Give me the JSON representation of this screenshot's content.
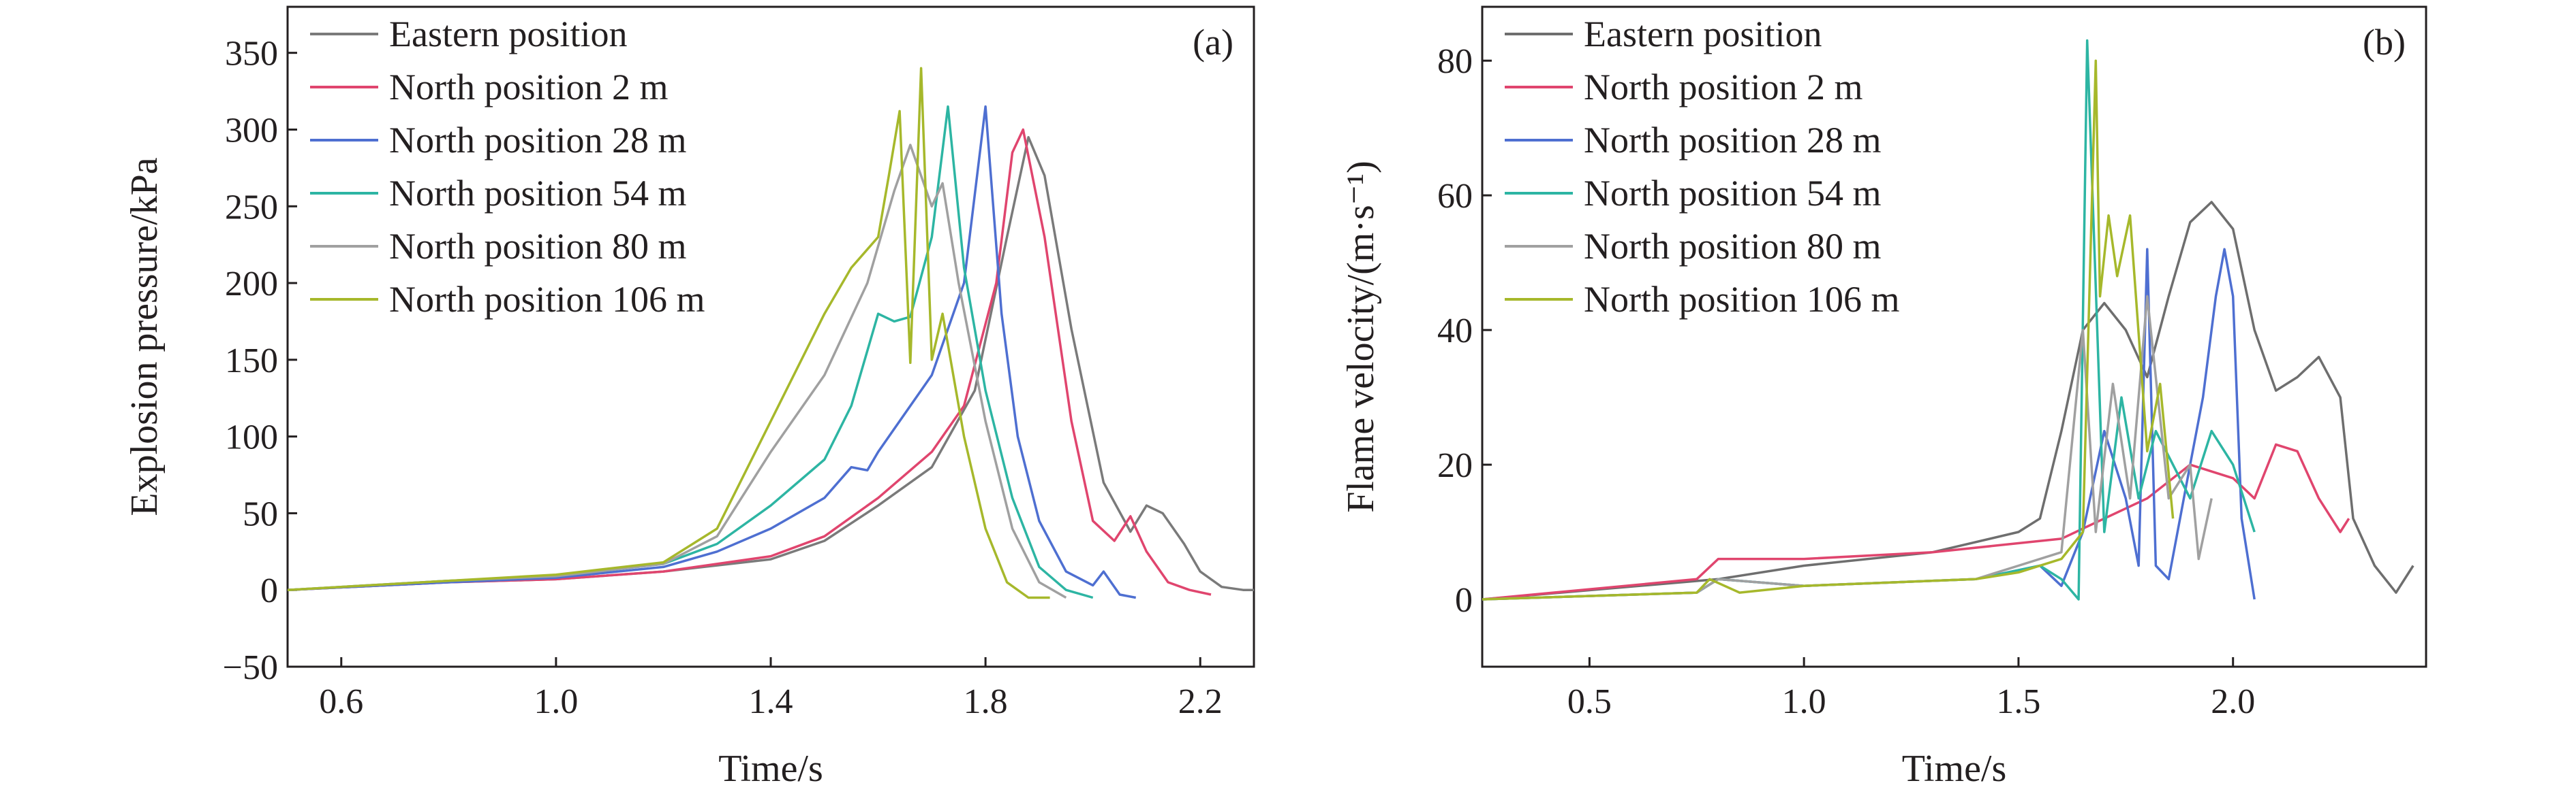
{
  "chart_data": [
    {
      "id": "a",
      "type": "line",
      "panel_label": "(a)",
      "title": "",
      "xlabel": "Time/s",
      "ylabel": "Explosion pressure/kPa",
      "xlim": [
        0.5,
        2.3
      ],
      "ylim": [
        -50,
        380
      ],
      "xticks": [
        0.6,
        1.0,
        1.4,
        1.8,
        2.2
      ],
      "xtick_labels": [
        "0.6",
        "1.0",
        "1.4",
        "1.8",
        "2.2"
      ],
      "yticks": [
        -50,
        0,
        50,
        100,
        150,
        200,
        250,
        300,
        350
      ],
      "ytick_labels": [
        "−50",
        "0",
        "50",
        "100",
        "150",
        "200",
        "250",
        "300",
        "350"
      ],
      "grid": false,
      "legend_position": "top-left",
      "series": [
        {
          "name": "Eastern position",
          "color": "#7a7a7a",
          "x": [
            0.5,
            0.8,
            1.0,
            1.2,
            1.4,
            1.5,
            1.6,
            1.7,
            1.78,
            1.84,
            1.88,
            1.91,
            1.96,
            2.02,
            2.07,
            2.1,
            2.13,
            2.17,
            2.2,
            2.24,
            2.28,
            2.3
          ],
          "y": [
            0,
            5,
            7,
            12,
            20,
            32,
            55,
            80,
            130,
            230,
            295,
            270,
            170,
            70,
            38,
            55,
            50,
            30,
            12,
            2,
            0,
            0
          ]
        },
        {
          "name": "North position 2 m",
          "color": "#e0456e",
          "x": [
            0.5,
            0.8,
            1.0,
            1.2,
            1.4,
            1.5,
            1.6,
            1.7,
            1.76,
            1.82,
            1.85,
            1.87,
            1.91,
            1.96,
            2.0,
            2.04,
            2.07,
            2.1,
            2.14,
            2.18,
            2.22
          ],
          "y": [
            0,
            5,
            7,
            12,
            22,
            35,
            60,
            90,
            120,
            200,
            285,
            300,
            230,
            110,
            45,
            32,
            48,
            25,
            5,
            0,
            -3
          ]
        },
        {
          "name": "North position 28 m",
          "color": "#4e6fd1",
          "x": [
            0.5,
            0.8,
            1.0,
            1.2,
            1.3,
            1.4,
            1.5,
            1.55,
            1.58,
            1.6,
            1.7,
            1.76,
            1.8,
            1.83,
            1.86,
            1.9,
            1.95,
            2.0,
            2.02,
            2.05,
            2.08
          ],
          "y": [
            0,
            5,
            8,
            15,
            25,
            40,
            60,
            80,
            78,
            90,
            140,
            200,
            315,
            180,
            100,
            45,
            12,
            3,
            12,
            -3,
            -5
          ]
        },
        {
          "name": "North position 54 m",
          "color": "#2db5a3",
          "x": [
            0.5,
            0.8,
            1.0,
            1.2,
            1.3,
            1.4,
            1.5,
            1.55,
            1.6,
            1.63,
            1.66,
            1.7,
            1.73,
            1.76,
            1.8,
            1.85,
            1.9,
            1.95,
            2.0
          ],
          "y": [
            0,
            6,
            9,
            17,
            30,
            55,
            85,
            120,
            180,
            175,
            178,
            230,
            315,
            210,
            130,
            60,
            15,
            0,
            -5
          ]
        },
        {
          "name": "North position 80 m",
          "color": "#a0a0a0",
          "x": [
            0.5,
            0.8,
            1.0,
            1.2,
            1.3,
            1.4,
            1.5,
            1.58,
            1.63,
            1.66,
            1.7,
            1.72,
            1.75,
            1.8,
            1.85,
            1.9,
            1.95
          ],
          "y": [
            0,
            6,
            9,
            17,
            35,
            90,
            140,
            200,
            260,
            290,
            250,
            265,
            200,
            110,
            40,
            5,
            -5
          ]
        },
        {
          "name": "North position 106 m",
          "color": "#a6b82b",
          "x": [
            0.5,
            0.8,
            1.0,
            1.2,
            1.3,
            1.4,
            1.5,
            1.55,
            1.6,
            1.62,
            1.64,
            1.66,
            1.68,
            1.7,
            1.72,
            1.76,
            1.8,
            1.84,
            1.88,
            1.92
          ],
          "y": [
            0,
            6,
            10,
            18,
            40,
            110,
            180,
            210,
            230,
            270,
            312,
            148,
            340,
            150,
            180,
            100,
            40,
            5,
            -5,
            -5
          ]
        }
      ]
    },
    {
      "id": "b",
      "type": "line",
      "panel_label": "(b)",
      "title": "",
      "xlabel": "Time/s",
      "ylabel": "Flame velocity/(m·s⁻¹)",
      "xlim": [
        0.25,
        2.45
      ],
      "ylim": [
        -10,
        88
      ],
      "xticks": [
        0.5,
        1.0,
        1.5,
        2.0
      ],
      "xtick_labels": [
        "0.5",
        "1.0",
        "1.5",
        "2.0"
      ],
      "yticks": [
        0,
        20,
        40,
        60,
        80
      ],
      "ytick_labels": [
        "0",
        "20",
        "40",
        "60",
        "80"
      ],
      "grid": false,
      "legend_position": "top-left",
      "series": [
        {
          "name": "Eastern position",
          "color": "#6e6e6e",
          "x": [
            0.25,
            0.8,
            1.0,
            1.3,
            1.5,
            1.55,
            1.6,
            1.65,
            1.7,
            1.75,
            1.8,
            1.85,
            1.9,
            1.95,
            2.0,
            2.05,
            2.1,
            2.15,
            2.2,
            2.25,
            2.28,
            2.33,
            2.38,
            2.42
          ],
          "y": [
            0,
            3,
            5,
            7,
            10,
            12,
            25,
            40,
            44,
            40,
            33,
            45,
            56,
            59,
            55,
            40,
            31,
            33,
            36,
            30,
            12,
            5,
            1,
            5
          ]
        },
        {
          "name": "North position 2 m",
          "color": "#e0456e",
          "x": [
            0.25,
            0.75,
            0.8,
            1.0,
            1.3,
            1.6,
            1.7,
            1.8,
            1.9,
            2.0,
            2.05,
            2.1,
            2.15,
            2.2,
            2.25,
            2.27
          ],
          "y": [
            0,
            3,
            6,
            6,
            7,
            9,
            12,
            15,
            20,
            18,
            15,
            23,
            22,
            15,
            10,
            12
          ]
        },
        {
          "name": "North position 28 m",
          "color": "#4e6fd1",
          "x": [
            0.25,
            0.75,
            0.8,
            1.0,
            1.4,
            1.55,
            1.6,
            1.65,
            1.7,
            1.75,
            1.78,
            1.8,
            1.82,
            1.85,
            1.9,
            1.93,
            1.96,
            1.98,
            2.0,
            2.02,
            2.05
          ],
          "y": [
            0,
            1,
            3,
            2,
            3,
            5,
            2,
            10,
            25,
            15,
            5,
            52,
            5,
            3,
            20,
            30,
            45,
            52,
            45,
            12,
            0
          ]
        },
        {
          "name": "North position 54 m",
          "color": "#2db5a3",
          "x": [
            0.25,
            0.75,
            0.8,
            1.0,
            1.4,
            1.55,
            1.6,
            1.64,
            1.66,
            1.7,
            1.74,
            1.78,
            1.82,
            1.86,
            1.9,
            1.95,
            2.0,
            2.05
          ],
          "y": [
            0,
            1,
            3,
            2,
            3,
            5,
            3,
            0,
            83,
            10,
            30,
            15,
            25,
            20,
            15,
            25,
            20,
            10
          ]
        },
        {
          "name": "North position 80 m",
          "color": "#a0a0a0",
          "x": [
            0.25,
            0.75,
            0.8,
            1.0,
            1.4,
            1.5,
            1.6,
            1.65,
            1.68,
            1.72,
            1.76,
            1.8,
            1.85,
            1.9,
            1.92,
            1.95
          ],
          "y": [
            0,
            1,
            3,
            2,
            3,
            5,
            7,
            40,
            10,
            32,
            15,
            45,
            15,
            20,
            6,
            15
          ]
        },
        {
          "name": "North position 106 m",
          "color": "#a6b82b",
          "x": [
            0.25,
            0.75,
            0.78,
            0.85,
            1.0,
            1.4,
            1.5,
            1.6,
            1.65,
            1.68,
            1.69,
            1.71,
            1.73,
            1.76,
            1.8,
            1.83,
            1.86
          ],
          "y": [
            0,
            1,
            3,
            1,
            2,
            3,
            4,
            6,
            10,
            80,
            45,
            57,
            48,
            57,
            22,
            32,
            12
          ]
        }
      ]
    }
  ]
}
